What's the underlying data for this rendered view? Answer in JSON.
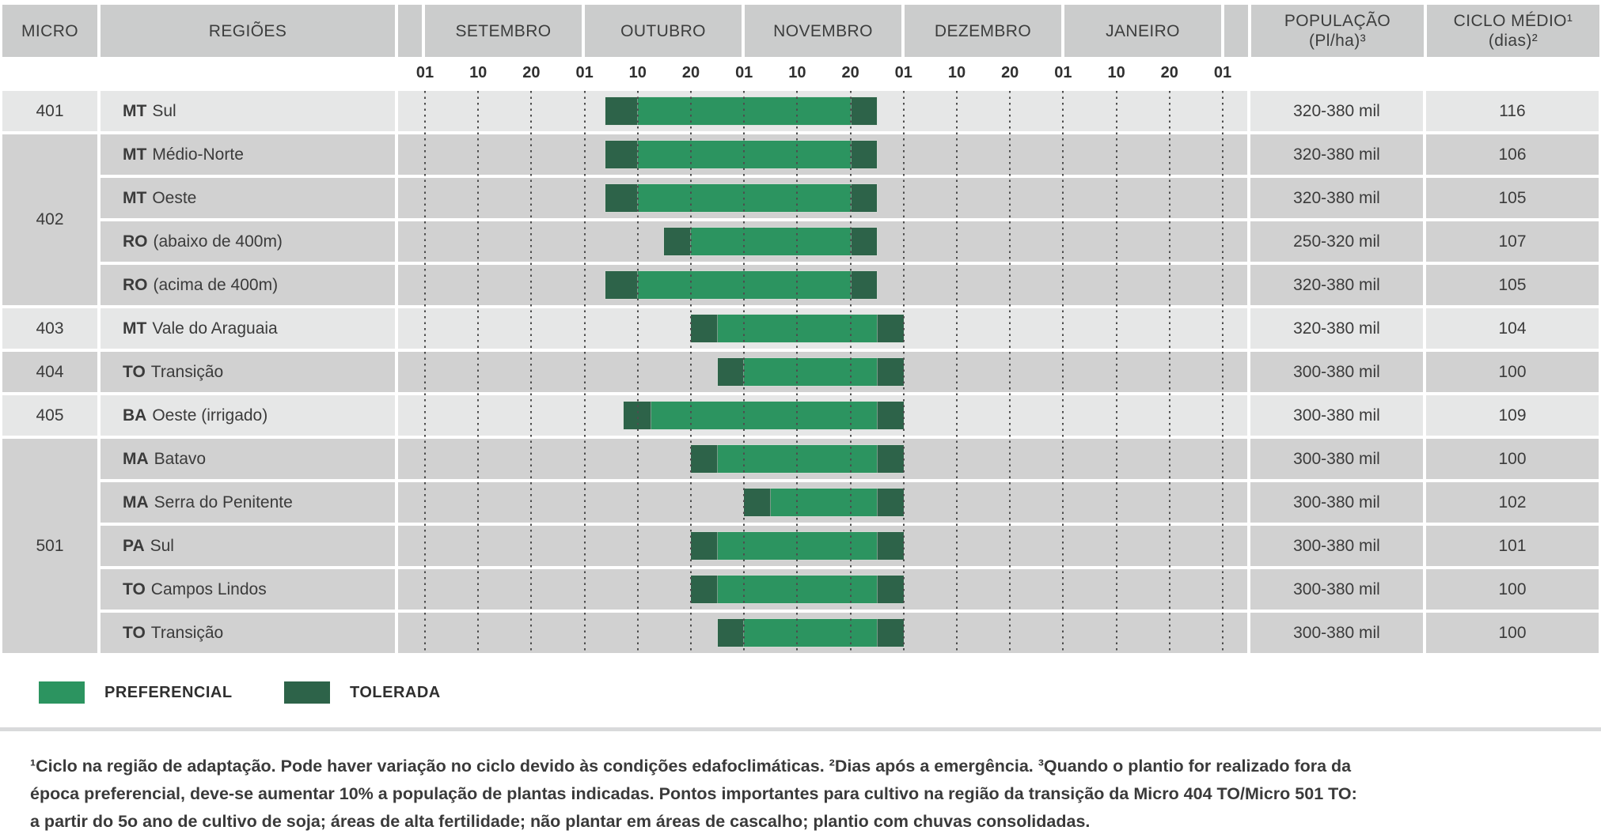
{
  "header": {
    "micro": "MICRO",
    "regions": "REGIÕES",
    "population_line1": "POPULAÇÃO",
    "population_line2": "(Pl/ha)³",
    "cycle_line1": "CICLO MÉDIO¹",
    "cycle_line2": "(dias)²"
  },
  "legend": {
    "preferencial": {
      "label": "PREFERENCIAL",
      "color": "#2C9460"
    },
    "tolerada": {
      "label": "TOLERADA",
      "color": "#2D6349"
    }
  },
  "footnote": {
    "lines": [
      "¹Ciclo na região de adaptação. Pode haver variação no ciclo devido às condições edafoclimáticas. ²Dias após a emergência. ³Quando o plantio for realizado fora da",
      "época preferencial, deve-se aumentar 10% a população de plantas indicadas. Pontos importantes para cultivo na região da transição da Micro 404 TO/Micro 501 TO:",
      "a partir do 5o ano de cultivo de soja; áreas de alta fertilidade; não plantar em áreas de cascalho; plantio com chuvas consolidadas."
    ]
  },
  "chart_data": {
    "type": "bar",
    "subtype": "horizontal gantt planting-window calendar",
    "months": [
      "SETEMBRO",
      "OUTUBRO",
      "NOVEMBRO",
      "DEZEMBRO",
      "JANEIRO"
    ],
    "tick_labels": [
      "01",
      "10",
      "20",
      "01",
      "10",
      "20",
      "01",
      "10",
      "20",
      "01",
      "10",
      "20",
      "01",
      "10",
      "20",
      "01"
    ],
    "tick_note": "bar_ticks unit: 0 = 01/Set, 1 tick = one axis division (~10 days), 15 = 01/Fev",
    "colors": {
      "preferencial": "#2C9460",
      "tolerada": "#2D6349",
      "row_light": "#E6E7E7",
      "row_dark": "#D1D1D1",
      "header_bg": "#CBCCCC"
    },
    "groups": [
      {
        "micro": "401",
        "shade": "light"
      },
      {
        "micro": "402",
        "shade": "dark"
      },
      {
        "micro": "403",
        "shade": "light"
      },
      {
        "micro": "404",
        "shade": "dark"
      },
      {
        "micro": "405",
        "shade": "light"
      },
      {
        "micro": "501",
        "shade": "dark"
      }
    ],
    "rows": [
      {
        "micro": "401",
        "state": "MT",
        "region": "Sul",
        "population": "320-380 mil",
        "cycle": "116",
        "bar_ticks": [
          3.4,
          4.0,
          8.0,
          8.5
        ],
        "window_start": "05/10",
        "pref_start": "10/10",
        "pref_end": "20/11",
        "window_end": "25/11"
      },
      {
        "micro": "402",
        "state": "MT",
        "region": "Médio-Norte",
        "population": "320-380 mil",
        "cycle": "106",
        "bar_ticks": [
          3.4,
          4.0,
          8.0,
          8.5
        ],
        "window_start": "05/10",
        "pref_start": "10/10",
        "pref_end": "20/11",
        "window_end": "25/11"
      },
      {
        "micro": "402",
        "state": "MT",
        "region": "Oeste",
        "population": "320-380 mil",
        "cycle": "105",
        "bar_ticks": [
          3.4,
          4.0,
          8.0,
          8.5
        ],
        "window_start": "05/10",
        "pref_start": "10/10",
        "pref_end": "20/11",
        "window_end": "25/11"
      },
      {
        "micro": "402",
        "state": "RO",
        "region": "(abaixo de 400m)",
        "population": "250-320 mil",
        "cycle": "107",
        "bar_ticks": [
          4.5,
          5.0,
          8.0,
          8.5
        ],
        "window_start": "15/10",
        "pref_start": "20/10",
        "pref_end": "20/11",
        "window_end": "25/11"
      },
      {
        "micro": "402",
        "state": "RO",
        "region": "(acima de 400m)",
        "population": "320-380 mil",
        "cycle": "105",
        "bar_ticks": [
          3.4,
          4.0,
          8.0,
          8.5
        ],
        "window_start": "05/10",
        "pref_start": "10/10",
        "pref_end": "20/11",
        "window_end": "25/11"
      },
      {
        "micro": "403",
        "state": "MT",
        "region": "Vale do Araguaia",
        "population": "320-380 mil",
        "cycle": "104",
        "bar_ticks": [
          5.0,
          5.5,
          8.5,
          9.0
        ],
        "window_start": "20/10",
        "pref_start": "25/10",
        "pref_end": "25/11",
        "window_end": "01/12"
      },
      {
        "micro": "404",
        "state": "TO",
        "region": "Transição",
        "population": "300-380 mil",
        "cycle": "100",
        "bar_ticks": [
          5.5,
          6.0,
          8.5,
          9.0
        ],
        "window_start": "25/10",
        "pref_start": "01/11",
        "pref_end": "25/11",
        "window_end": "01/12"
      },
      {
        "micro": "405",
        "state": "BA",
        "region": "Oeste (irrigado)",
        "population": "300-380 mil",
        "cycle": "109",
        "bar_ticks": [
          3.73,
          4.25,
          8.5,
          9.0
        ],
        "window_start": "08/10",
        "pref_start": "13/10",
        "pref_end": "25/11",
        "window_end": "01/12"
      },
      {
        "micro": "501",
        "state": "MA",
        "region": "Batavo",
        "population": "300-380 mil",
        "cycle": "100",
        "bar_ticks": [
          5.0,
          5.5,
          8.5,
          9.0
        ],
        "window_start": "20/10",
        "pref_start": "25/10",
        "pref_end": "25/11",
        "window_end": "01/12"
      },
      {
        "micro": "501",
        "state": "MA",
        "region": "Serra do Penitente",
        "population": "300-380 mil",
        "cycle": "102",
        "bar_ticks": [
          6.0,
          6.5,
          8.5,
          9.0
        ],
        "window_start": "01/11",
        "pref_start": "05/11",
        "pref_end": "25/11",
        "window_end": "01/12"
      },
      {
        "micro": "501",
        "state": "PA",
        "region": "Sul",
        "population": "300-380 mil",
        "cycle": "101",
        "bar_ticks": [
          5.0,
          5.5,
          8.5,
          9.0
        ],
        "window_start": "20/10",
        "pref_start": "25/10",
        "pref_end": "25/11",
        "window_end": "01/12"
      },
      {
        "micro": "501",
        "state": "TO",
        "region": "Campos Lindos",
        "population": "300-380 mil",
        "cycle": "100",
        "bar_ticks": [
          5.0,
          5.5,
          8.5,
          9.0
        ],
        "window_start": "20/10",
        "pref_start": "25/10",
        "pref_end": "25/11",
        "window_end": "01/12"
      },
      {
        "micro": "501",
        "state": "TO",
        "region": "Transição",
        "population": "300-380 mil",
        "cycle": "100",
        "bar_ticks": [
          5.5,
          6.0,
          8.5,
          9.0
        ],
        "window_start": "25/10",
        "pref_start": "01/11",
        "pref_end": "25/11",
        "window_end": "01/12"
      }
    ]
  }
}
